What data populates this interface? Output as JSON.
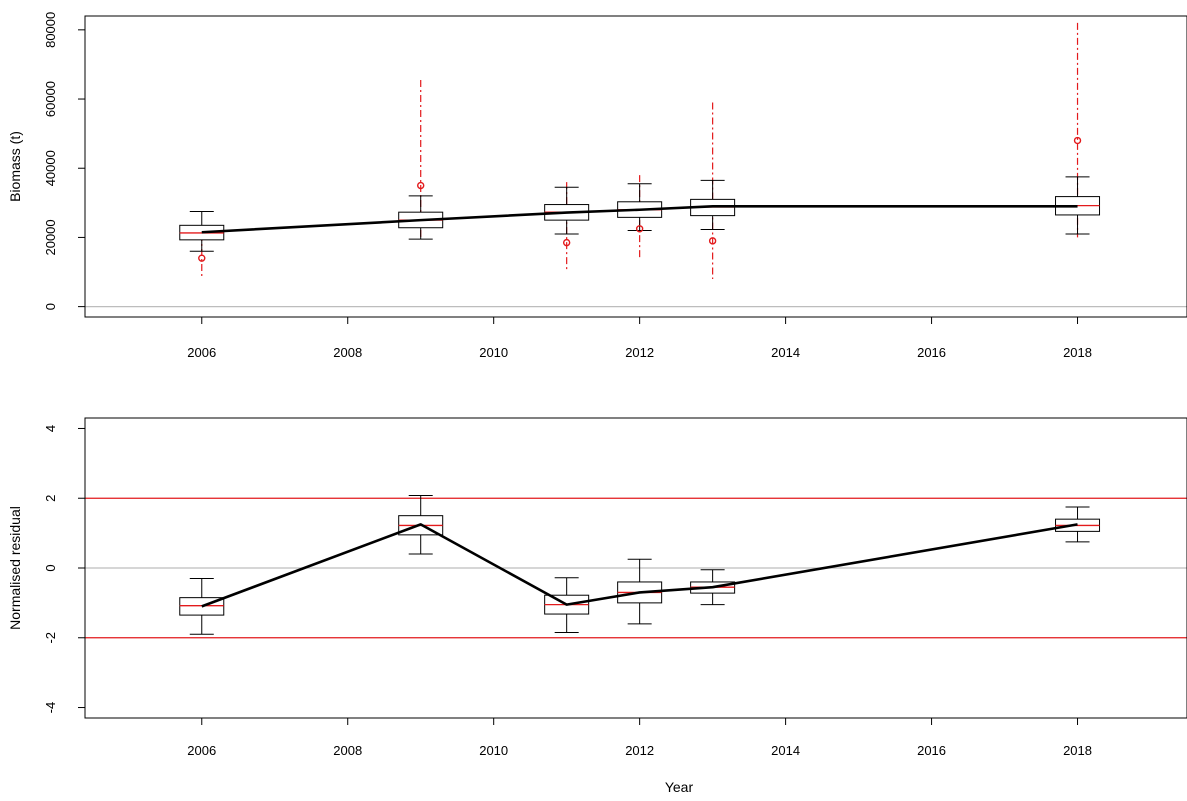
{
  "chart_data": [
    {
      "type": "box",
      "title": "",
      "xlabel": "",
      "ylabel": "Biomass (t)",
      "xlim": [
        2004.4,
        2019.5
      ],
      "ylim": [
        -3000,
        84000
      ],
      "x_ticks": [
        "2006",
        "2008",
        "2010",
        "2012",
        "2014",
        "2016",
        "2018"
      ],
      "y_ticks": [
        "0",
        "20000",
        "40000",
        "60000",
        "80000"
      ],
      "reference_lines": [
        {
          "y": 0,
          "color": "#bdbdbd"
        }
      ],
      "grid": false,
      "colors": {
        "model": "#000000",
        "observed": "#e31a1c",
        "median": "#e31a1c",
        "reference": "#bdbdbd"
      },
      "model_line": {
        "x": [
          2006,
          2009,
          2011,
          2012,
          2013,
          2018
        ],
        "y": [
          21500,
          25000,
          27200,
          28000,
          29000,
          29000
        ]
      },
      "boxes": [
        {
          "x": 2006,
          "whisker_low": 16000,
          "q1": 19300,
          "median": 21300,
          "q3": 23500,
          "whisker_high": 27500
        },
        {
          "x": 2009,
          "whisker_low": 19500,
          "q1": 22800,
          "median": 25000,
          "q3": 27300,
          "whisker_high": 32000
        },
        {
          "x": 2011,
          "whisker_low": 21000,
          "q1": 25000,
          "median": 27300,
          "q3": 29500,
          "whisker_high": 34500
        },
        {
          "x": 2012,
          "whisker_low": 22000,
          "q1": 25800,
          "median": 28000,
          "q3": 30300,
          "whisker_high": 35500
        },
        {
          "x": 2013,
          "whisker_low": 22300,
          "q1": 26300,
          "median": 28800,
          "q3": 31000,
          "whisker_high": 36500
        },
        {
          "x": 2018,
          "whisker_low": 21000,
          "q1": 26500,
          "median": 29200,
          "q3": 31800,
          "whisker_high": 37500
        }
      ],
      "observations": [
        {
          "x": 2006,
          "y": 14000,
          "low": 8000,
          "high": 21000
        },
        {
          "x": 2009,
          "y": 35000,
          "low": 20000,
          "high": 65500
        },
        {
          "x": 2011,
          "y": 18500,
          "low": 10500,
          "high": 36000
        },
        {
          "x": 2012,
          "y": 22500,
          "low": 14000,
          "high": 38000
        },
        {
          "x": 2013,
          "y": 19000,
          "low": 8000,
          "high": 59000
        },
        {
          "x": 2018,
          "y": 48000,
          "low": 20000,
          "high": 82000
        }
      ]
    },
    {
      "type": "box",
      "title": "",
      "xlabel": "Year",
      "ylabel": "Normalised residual",
      "xlim": [
        2004.4,
        2019.5
      ],
      "ylim": [
        -4.3,
        4.3
      ],
      "x_ticks": [
        "2006",
        "2008",
        "2010",
        "2012",
        "2014",
        "2016",
        "2018"
      ],
      "y_ticks": [
        "-4",
        "-2",
        "0",
        "2",
        "4"
      ],
      "reference_lines": [
        {
          "y": 2,
          "color": "#e31a1c"
        },
        {
          "y": 0,
          "color": "#bdbdbd"
        },
        {
          "y": -2,
          "color": "#e31a1c"
        }
      ],
      "grid": false,
      "colors": {
        "model": "#000000",
        "median": "#e31a1c"
      },
      "model_line": {
        "x": [
          2006,
          2009,
          2011,
          2012,
          2013,
          2018
        ],
        "y": [
          -1.1,
          1.25,
          -1.05,
          -0.7,
          -0.55,
          1.25
        ]
      },
      "boxes": [
        {
          "x": 2006,
          "whisker_low": -1.9,
          "q1": -1.35,
          "median": -1.08,
          "q3": -0.85,
          "whisker_high": -0.3
        },
        {
          "x": 2009,
          "whisker_low": 0.4,
          "q1": 0.95,
          "median": 1.22,
          "q3": 1.5,
          "whisker_high": 2.08
        },
        {
          "x": 2011,
          "whisker_low": -1.85,
          "q1": -1.32,
          "median": -1.05,
          "q3": -0.78,
          "whisker_high": -0.28
        },
        {
          "x": 2012,
          "whisker_low": -1.6,
          "q1": -1.0,
          "median": -0.7,
          "q3": -0.4,
          "whisker_high": 0.25
        },
        {
          "x": 2013,
          "whisker_low": -1.05,
          "q1": -0.72,
          "median": -0.55,
          "q3": -0.4,
          "whisker_high": -0.05
        },
        {
          "x": 2018,
          "whisker_low": 0.75,
          "q1": 1.05,
          "median": 1.22,
          "q3": 1.4,
          "whisker_high": 1.75
        }
      ],
      "observations": []
    }
  ]
}
